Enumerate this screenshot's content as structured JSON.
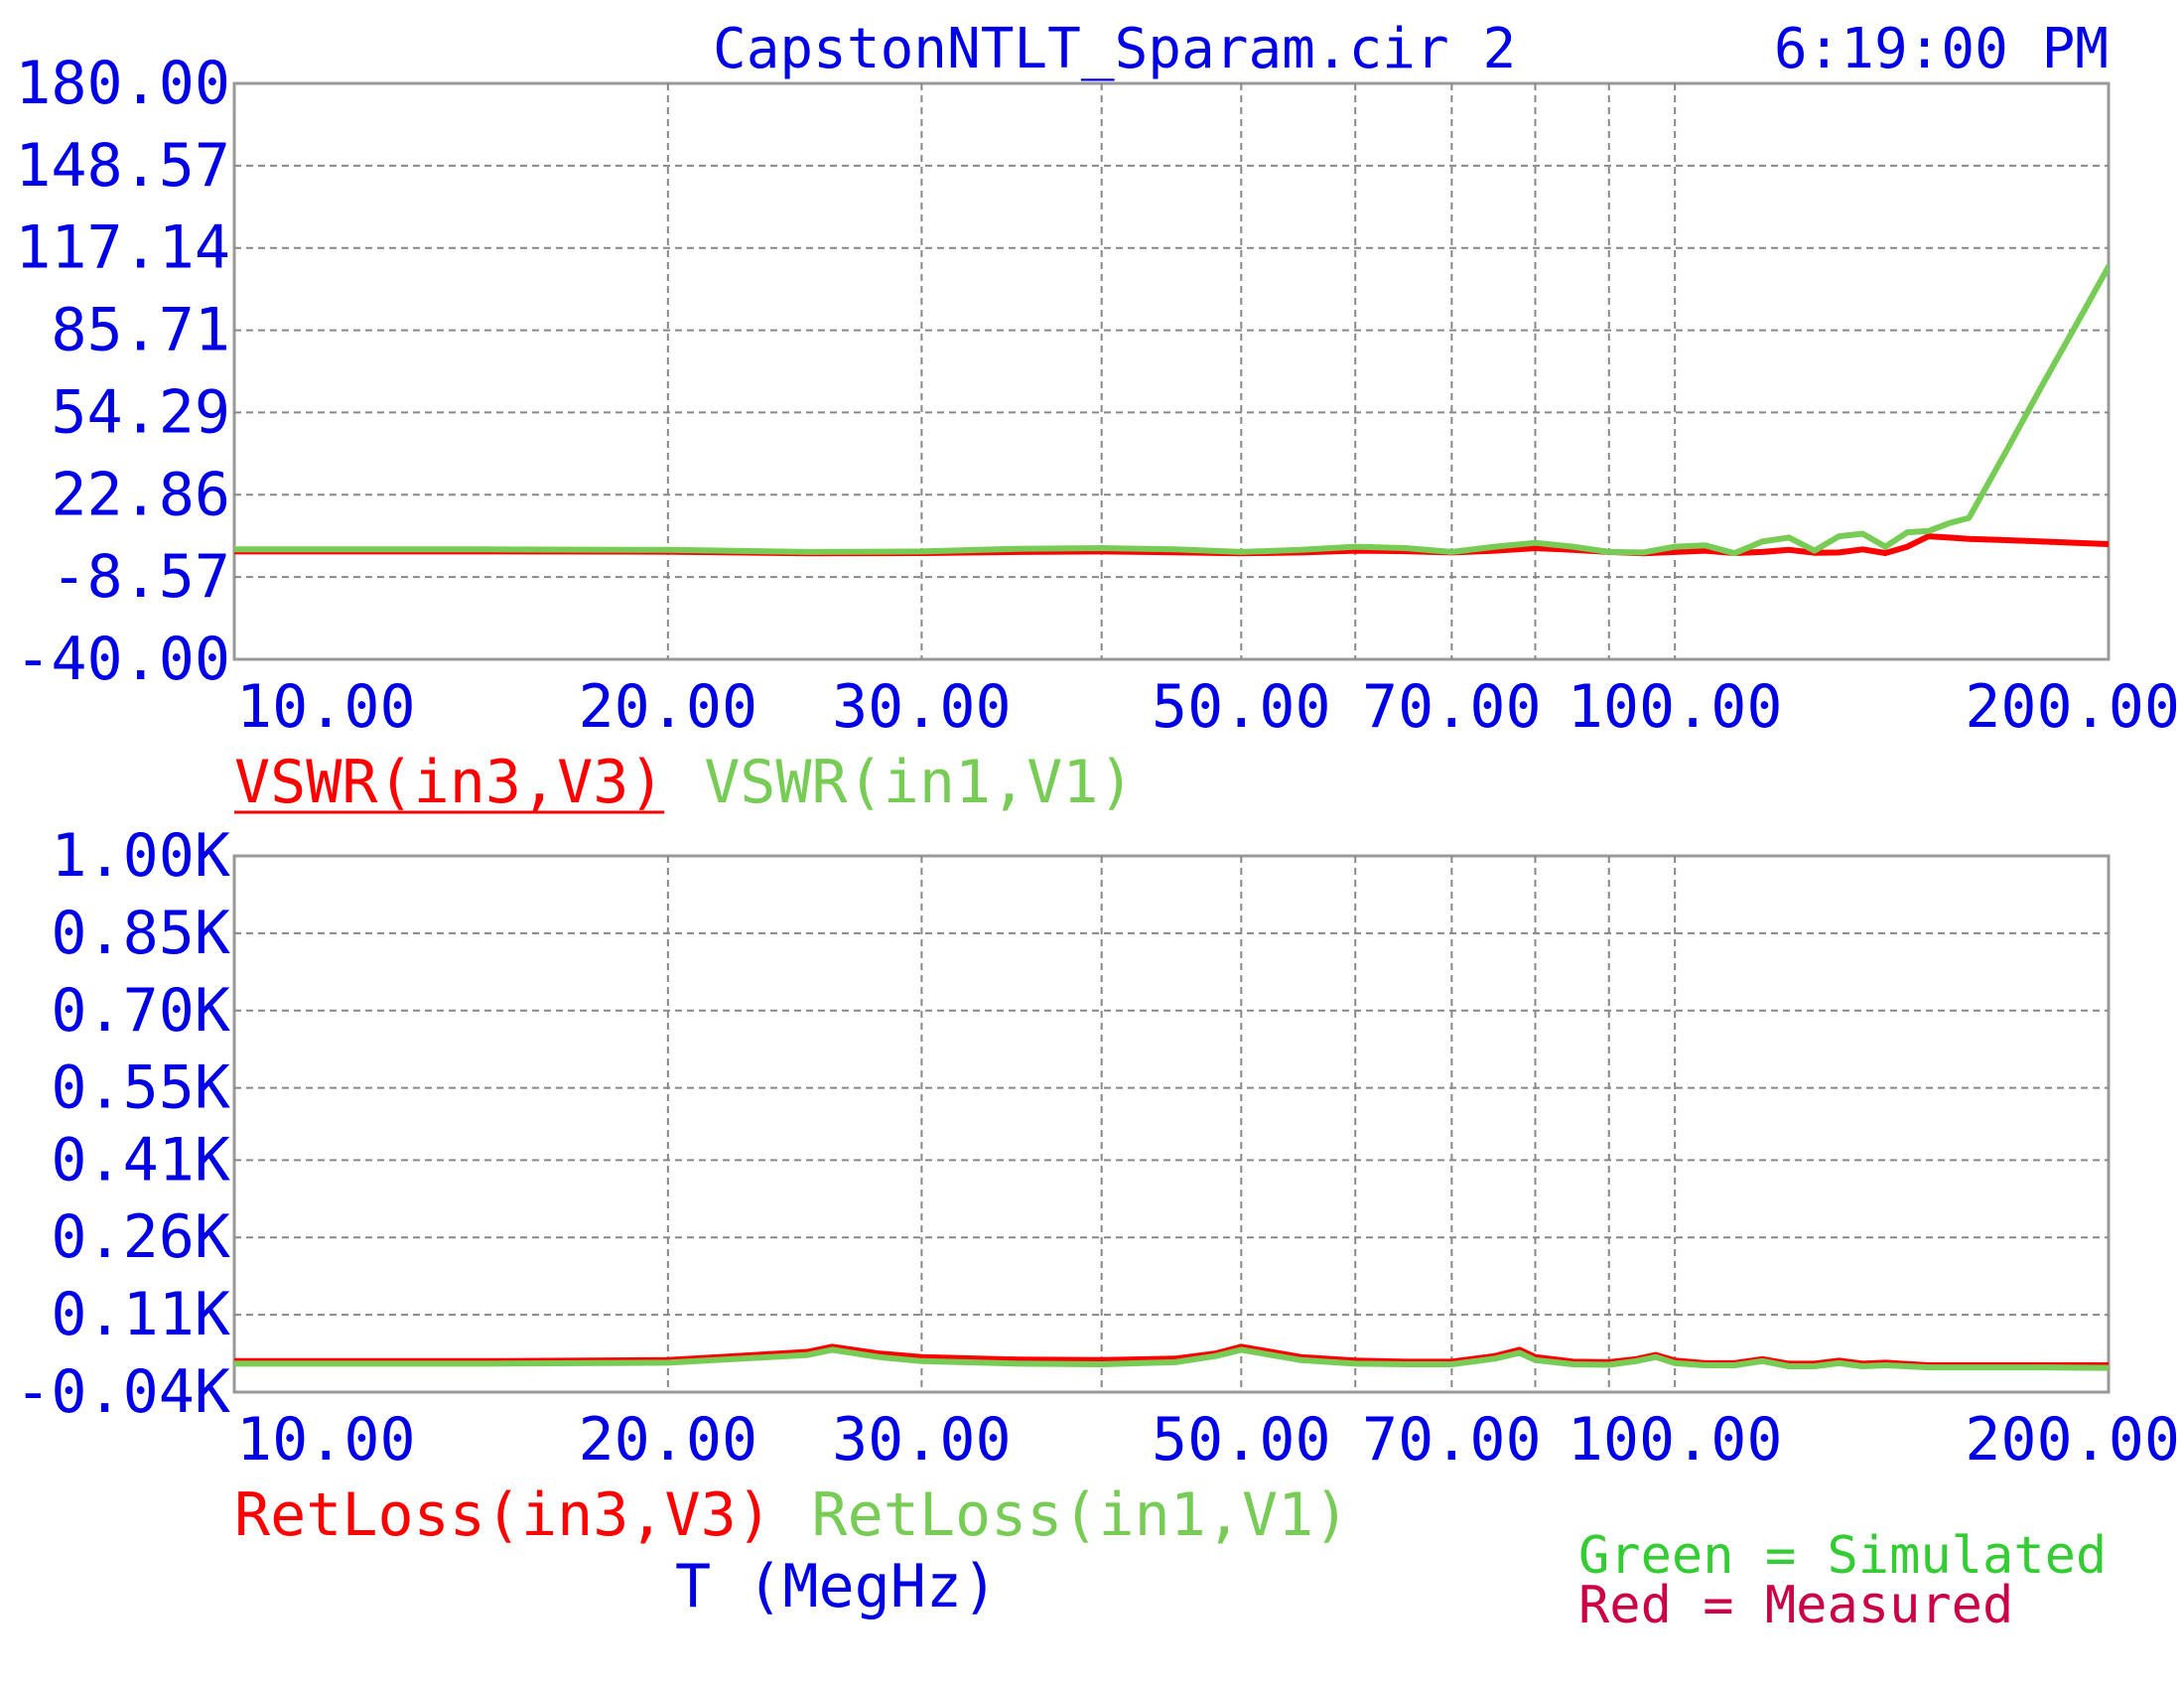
{
  "header": {
    "title": "CapstonNTLT_Sparam.cir 2",
    "time": "6:19:00 PM"
  },
  "colors": {
    "axis_text": "#0000e6",
    "measured": "#ff0000",
    "simulated": "#77cc55",
    "note_simulated": "#33cc33",
    "note_measured": "#cc0044",
    "grid": "#888888",
    "frame": "#999999"
  },
  "xaxis": {
    "label": "T (MegHz)",
    "scale": "log",
    "range": [
      10,
      200
    ],
    "ticks": [
      10,
      20,
      30,
      50,
      70,
      100,
      200
    ],
    "tick_labels": [
      "10.00",
      "20.00",
      "30.00",
      "50.00",
      "70.00",
      "100.00",
      "200.00"
    ],
    "minor_gridlines": [
      40,
      60,
      80,
      90
    ]
  },
  "notes": {
    "simulated": "Green = Simulated",
    "measured": "Red = Measured"
  },
  "chart_data": [
    {
      "type": "line",
      "panel": "top",
      "title": "",
      "xlabel": "",
      "ylabel": "",
      "ylim": [
        -40,
        180
      ],
      "yticks": [
        -40,
        -8.57,
        22.86,
        54.29,
        85.71,
        117.14,
        148.57,
        180
      ],
      "ytick_labels": [
        "-40.00",
        "-8.57",
        "22.86",
        "54.29",
        "85.71",
        "117.14",
        "148.57",
        "180.00"
      ],
      "grid": true,
      "legend_position": "bottom-left",
      "x": [
        10,
        15,
        20,
        25,
        30,
        35,
        40,
        45,
        50,
        55,
        60,
        65,
        70,
        75,
        80,
        85,
        90,
        95,
        100,
        105,
        110,
        115,
        120,
        125,
        130,
        135,
        140,
        145,
        150,
        155,
        160,
        170,
        180,
        190,
        200
      ],
      "series": [
        {
          "name": "VSWR(in3,V3)",
          "color": "#ff0000",
          "underlined": true,
          "values": [
            1.2,
            1.2,
            1.1,
            0.5,
            0.6,
            1.0,
            1.2,
            0.9,
            0.5,
            0.8,
            1.5,
            1.3,
            0.8,
            1.5,
            2.5,
            1.8,
            1.0,
            0.5,
            1.0,
            1.5,
            0.6,
            1.0,
            1.8,
            0.7,
            0.8,
            2.0,
            0.6,
            3.0,
            7.0,
            6.5,
            6.0,
            5.5,
            5.0,
            4.5,
            4.0
          ]
        },
        {
          "name": "VSWR(in1,V1)",
          "color": "#77cc55",
          "underlined": false,
          "values": [
            2.0,
            2.0,
            1.8,
            1.0,
            1.2,
            2.2,
            2.5,
            2.0,
            1.0,
            1.8,
            3.0,
            2.5,
            1.0,
            3.0,
            4.5,
            3.0,
            1.0,
            0.8,
            3.0,
            3.5,
            0.5,
            5.0,
            6.5,
            1.5,
            7.0,
            8.0,
            3.0,
            8.5,
            9.0,
            12.0,
            14.0,
            40.0,
            65.0,
            88.0,
            110.0
          ]
        }
      ]
    },
    {
      "type": "line",
      "panel": "bottom",
      "title": "",
      "xlabel": "T (MegHz)",
      "ylabel": "",
      "ylim": [
        -40,
        1000
      ],
      "yticks": [
        -40,
        110,
        260,
        410,
        550,
        700,
        850,
        1000
      ],
      "ytick_labels": [
        "-0.04K",
        "0.11K",
        "0.26K",
        "0.41K",
        "0.55K",
        "0.70K",
        "0.85K",
        "1.00K"
      ],
      "grid": true,
      "legend_position": "bottom-left",
      "x": [
        10,
        15,
        20,
        25,
        26,
        28,
        30,
        35,
        40,
        45,
        48,
        50,
        55,
        60,
        65,
        70,
        75,
        78,
        80,
        85,
        90,
        94,
        97,
        100,
        105,
        110,
        115,
        120,
        125,
        130,
        135,
        140,
        150,
        160,
        170,
        180,
        200
      ],
      "series": [
        {
          "name": "RetLoss(in3,V3)",
          "color": "#ff0000",
          "values": [
            20,
            20,
            22,
            38,
            48,
            35,
            28,
            23,
            22,
            25,
            35,
            48,
            28,
            21,
            19,
            19,
            30,
            42,
            28,
            19,
            18,
            24,
            32,
            21,
            16,
            16,
            24,
            15,
            15,
            21,
            15,
            17,
            12,
            12,
            12,
            12,
            12
          ]
        },
        {
          "name": "RetLoss(in1,V1)",
          "color": "#77cc55",
          "values": [
            15,
            15,
            17,
            32,
            42,
            28,
            20,
            15,
            14,
            18,
            30,
            42,
            22,
            15,
            14,
            14,
            25,
            36,
            22,
            14,
            13,
            20,
            28,
            16,
            12,
            12,
            20,
            10,
            10,
            16,
            10,
            12,
            8,
            8,
            8,
            8,
            7
          ]
        }
      ]
    }
  ]
}
